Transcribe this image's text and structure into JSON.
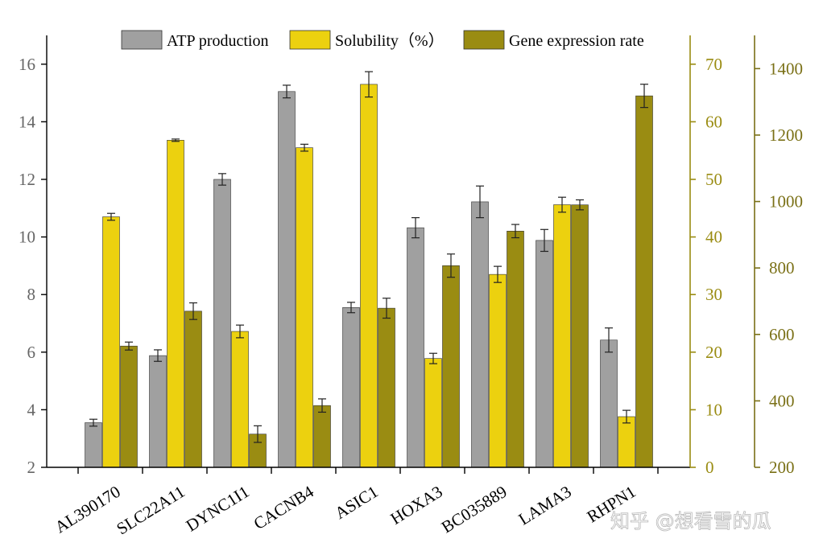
{
  "chart_data": {
    "type": "bar",
    "categories": [
      "AL390170",
      "SLC22A11",
      "DYNC1I1",
      "CACNB4",
      "ASIC1",
      "HOXA3",
      "BC035889",
      "LAMA3",
      "RHPN1"
    ],
    "series": [
      {
        "name": "ATP production",
        "axis": "left",
        "color": "#a0a0a0",
        "values": [
          3.55,
          5.88,
          12.0,
          15.05,
          7.55,
          10.32,
          11.22,
          9.88,
          6.42
        ],
        "errors": [
          0.12,
          0.2,
          0.2,
          0.22,
          0.18,
          0.35,
          0.55,
          0.38,
          0.42
        ]
      },
      {
        "name": "Solubility（%）",
        "axis": "right1",
        "color": "#ecd10f",
        "values": [
          43.5,
          56.8,
          23.6,
          55.5,
          66.5,
          18.9,
          33.5,
          45.6,
          8.8
        ],
        "errors": [
          0.6,
          0.2,
          1.1,
          0.6,
          2.2,
          0.9,
          1.4,
          1.3,
          1.1
        ]
      },
      {
        "name": "Gene expression rate",
        "axis": "right2",
        "color": "#9a8c12",
        "values": [
          565,
          670,
          300,
          386,
          679,
          807,
          911,
          990,
          1318
        ],
        "errors": [
          12,
          25,
          25,
          20,
          30,
          35,
          20,
          15,
          35
        ]
      }
    ],
    "axes": {
      "left": {
        "range": [
          2,
          17
        ],
        "ticks": [
          2,
          4,
          6,
          8,
          10,
          12,
          14,
          16
        ],
        "color": "#000000",
        "tick_color": "#666666"
      },
      "right1": {
        "range": [
          0,
          75
        ],
        "ticks": [
          0,
          10,
          20,
          30,
          40,
          50,
          60,
          70
        ],
        "color": "#9a8c12"
      },
      "right2": {
        "range": [
          200,
          1500
        ],
        "ticks": [
          200,
          400,
          600,
          800,
          1000,
          1200,
          1400
        ],
        "color": "#7a7016"
      }
    },
    "legend_position": "top",
    "grid": false
  },
  "watermark": "知乎 @想看雪的瓜"
}
